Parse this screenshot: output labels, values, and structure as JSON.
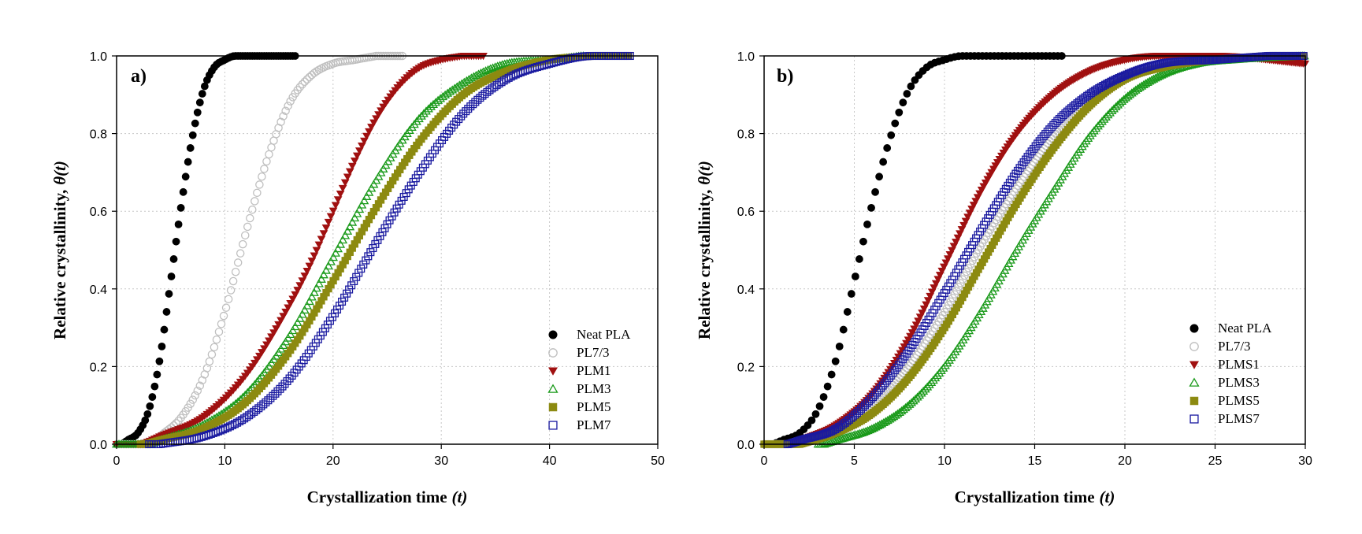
{
  "chart_data": [
    {
      "type": "scatter",
      "panel_label": "a)",
      "xlabel": "Crystallization time",
      "xlabel_var": "(t)",
      "ylabel": "Relative crystallinity,",
      "ylabel_var": "θ(t)",
      "xlim": [
        0,
        50
      ],
      "ylim": [
        0,
        1
      ],
      "xticks": [
        0,
        10,
        20,
        30,
        40,
        50
      ],
      "yticks": [
        0.0,
        0.2,
        0.4,
        0.6,
        0.8,
        1.0
      ],
      "xtick_labels": [
        "0",
        "10",
        "20",
        "30",
        "40",
        "50"
      ],
      "ytick_labels": [
        "0.0",
        "0.2",
        "0.4",
        "0.6",
        "0.8",
        "1.0"
      ],
      "grid": true,
      "legend_position": "bottom-right",
      "series": [
        {
          "name": "Neat PLA",
          "marker": "circle",
          "filled": true,
          "color": "#000000",
          "x_start": 0.0,
          "x_end": 16.7,
          "step": 0.22,
          "x": [
            1,
            2,
            3,
            4,
            5,
            6,
            7,
            8,
            9,
            10,
            11,
            12,
            13
          ],
          "y": [
            0.01,
            0.03,
            0.09,
            0.22,
            0.42,
            0.62,
            0.79,
            0.91,
            0.97,
            0.99,
            1.0,
            1.0,
            1.0
          ]
        },
        {
          "name": "PL7/3",
          "marker": "circle",
          "filled": false,
          "color": "#bfbfbf",
          "x_start": 0.0,
          "x_end": 26.5,
          "step": 0.22,
          "x": [
            4,
            6,
            8,
            10,
            12,
            14,
            16,
            18,
            20,
            22,
            24
          ],
          "y": [
            0.02,
            0.07,
            0.17,
            0.34,
            0.55,
            0.74,
            0.88,
            0.95,
            0.98,
            0.99,
            1.0
          ]
        },
        {
          "name": "PLM1",
          "marker": "triangle-down",
          "filled": true,
          "color": "#a01010",
          "x_start": 0.0,
          "x_end": 34.0,
          "step": 0.22,
          "x": [
            4,
            8,
            12,
            16,
            18,
            20,
            22,
            24,
            26,
            28,
            30,
            32
          ],
          "y": [
            0.02,
            0.07,
            0.18,
            0.36,
            0.47,
            0.6,
            0.73,
            0.84,
            0.92,
            0.97,
            0.99,
            1.0
          ]
        },
        {
          "name": "PLM3",
          "marker": "triangle-up",
          "filled": false,
          "color": "#1a9a1a",
          "x_start": 0.0,
          "x_end": 43.3,
          "step": 0.22,
          "x": [
            4,
            8,
            12,
            16,
            20,
            24,
            28,
            32,
            36,
            40,
            43
          ],
          "y": [
            0.01,
            0.05,
            0.13,
            0.28,
            0.48,
            0.68,
            0.84,
            0.93,
            0.98,
            0.99,
            1.0
          ]
        },
        {
          "name": "PLM5",
          "marker": "square",
          "filled": true,
          "color": "#8c8a10",
          "x_start": 2.2,
          "x_end": 47.5,
          "step": 0.22,
          "x": [
            4,
            8,
            12,
            16,
            20,
            24,
            28,
            32,
            36,
            40,
            44
          ],
          "y": [
            0.01,
            0.04,
            0.11,
            0.24,
            0.42,
            0.61,
            0.78,
            0.9,
            0.96,
            0.99,
            1.0
          ]
        },
        {
          "name": "PLM7",
          "marker": "square",
          "filled": false,
          "color": "#1a1aa0",
          "x_start": 3.0,
          "x_end": 47.5,
          "step": 0.22,
          "x": [
            4,
            8,
            12,
            16,
            20,
            24,
            28,
            32,
            36,
            40,
            44,
            47
          ],
          "y": [
            0.0,
            0.02,
            0.07,
            0.17,
            0.33,
            0.52,
            0.7,
            0.85,
            0.94,
            0.98,
            1.0,
            1.0
          ]
        }
      ]
    },
    {
      "type": "scatter",
      "panel_label": "b)",
      "xlabel": "Crystallization time",
      "xlabel_var": "(t)",
      "ylabel": "Relative crystallinity,",
      "ylabel_var": "θ(t)",
      "xlim": [
        0,
        30
      ],
      "ylim": [
        0,
        1
      ],
      "xticks": [
        0,
        5,
        10,
        15,
        20,
        25,
        30
      ],
      "yticks": [
        0.0,
        0.2,
        0.4,
        0.6,
        0.8,
        1.0
      ],
      "xtick_labels": [
        "0",
        "5",
        "10",
        "15",
        "20",
        "25",
        "30"
      ],
      "ytick_labels": [
        "0.0",
        "0.2",
        "0.4",
        "0.6",
        "0.8",
        "1.0"
      ],
      "grid": true,
      "legend_position": "bottom-right",
      "series": [
        {
          "name": "Neat PLA",
          "marker": "circle",
          "filled": true,
          "color": "#000000",
          "x_start": 0.0,
          "x_end": 16.7,
          "step": 0.22,
          "x": [
            1,
            2,
            3,
            4,
            5,
            6,
            7,
            8,
            9,
            10,
            11,
            12,
            13
          ],
          "y": [
            0.01,
            0.03,
            0.09,
            0.22,
            0.42,
            0.62,
            0.79,
            0.91,
            0.97,
            0.99,
            1.0,
            1.0,
            1.0
          ]
        },
        {
          "name": "PL7/3",
          "marker": "circle",
          "filled": false,
          "color": "#bfbfbf",
          "x_start": 0.0,
          "x_end": 30.0,
          "step": 0.11,
          "x": [
            2,
            4,
            6,
            8,
            10,
            12,
            14,
            16,
            18,
            20,
            22,
            25,
            28
          ],
          "y": [
            0.01,
            0.04,
            0.1,
            0.2,
            0.34,
            0.51,
            0.66,
            0.79,
            0.88,
            0.94,
            0.97,
            0.99,
            1.0
          ]
        },
        {
          "name": "PLMS1",
          "marker": "triangle-down",
          "filled": true,
          "color": "#a01010",
          "x_start": 1.5,
          "x_end": 30.0,
          "step": 0.11,
          "x": [
            2,
            4,
            6,
            8,
            10,
            12,
            14,
            16,
            18,
            20,
            22,
            25,
            30
          ],
          "y": [
            0.01,
            0.05,
            0.13,
            0.27,
            0.46,
            0.65,
            0.8,
            0.9,
            0.96,
            0.99,
            1.0,
            1.0,
            0.98
          ]
        },
        {
          "name": "PLMS3",
          "marker": "triangle-up",
          "filled": false,
          "color": "#1a9a1a",
          "x_start": 3.0,
          "x_end": 30.0,
          "step": 0.11,
          "x": [
            4,
            6,
            8,
            10,
            12,
            14,
            16,
            18,
            20,
            22,
            24,
            26,
            30
          ],
          "y": [
            0.01,
            0.04,
            0.1,
            0.2,
            0.34,
            0.5,
            0.65,
            0.79,
            0.89,
            0.95,
            0.98,
            0.99,
            1.0
          ]
        },
        {
          "name": "PLMS5",
          "marker": "square",
          "filled": true,
          "color": "#8c8a10",
          "x_start": 0.0,
          "x_end": 30.0,
          "step": 0.11,
          "x": [
            2,
            4,
            6,
            8,
            10,
            12,
            14,
            16,
            18,
            20,
            22,
            25,
            28
          ],
          "y": [
            0.0,
            0.03,
            0.08,
            0.17,
            0.3,
            0.46,
            0.62,
            0.76,
            0.87,
            0.94,
            0.97,
            0.99,
            1.0
          ]
        },
        {
          "name": "PLMS7",
          "marker": "square",
          "filled": false,
          "color": "#1a1aa0",
          "x_start": 1.3,
          "x_end": 30.0,
          "step": 0.11,
          "x": [
            2,
            4,
            6,
            8,
            10,
            12,
            14,
            16,
            18,
            20,
            22,
            25,
            28
          ],
          "y": [
            0.01,
            0.04,
            0.12,
            0.24,
            0.39,
            0.55,
            0.7,
            0.82,
            0.9,
            0.95,
            0.98,
            0.99,
            1.0
          ]
        }
      ]
    }
  ]
}
